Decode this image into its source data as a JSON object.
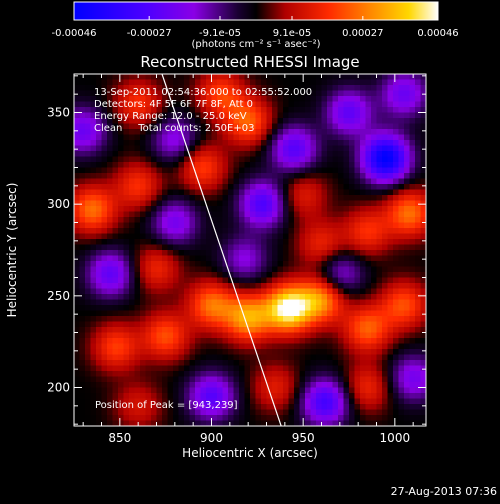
{
  "colorbar": {
    "tick_labels": [
      "-0.00046",
      "-0.00027",
      "-9.1e-05",
      "9.1e-05",
      "0.00027",
      "0.00046"
    ],
    "tick_values": [
      -0.00046,
      -0.00027,
      -9.1e-05,
      9.1e-05,
      0.00027,
      0.00046
    ],
    "range": [
      -0.00046,
      0.00046
    ],
    "unit_label": "(photons cm⁻² s⁻¹ asec⁻²)",
    "colors": [
      "#0000ff",
      "#7a00ff",
      "#000000",
      "#ff0000",
      "#ff8c00",
      "#ffffff"
    ]
  },
  "chart_data": {
    "type": "heatmap",
    "title": "Reconstructed RHESSI Image",
    "xlabel": "Heliocentric X (arcsec)",
    "ylabel": "Heliocentric Y (arcsec)",
    "xlim": [
      825,
      1017
    ],
    "ylim": [
      179,
      371
    ],
    "x_ticks": [
      850,
      900,
      950,
      1000
    ],
    "y_ticks": [
      200,
      250,
      300,
      350
    ],
    "annotations": [
      "13-Sep-2011 02:54:36.000 to 02:55:52.000",
      "Detectors: 4F 5F 6F 7F 8F, Att 0",
      "Energy Range: 12.0 - 25.0 keV",
      "Clean     Total counts: 2.50E+03"
    ],
    "peak_label": "Position of Peak = [943,239]",
    "peak": [
      943,
      239
    ],
    "limb_line": [
      [
        873,
        371
      ],
      [
        938,
        179
      ]
    ],
    "value_range": [
      -0.00046,
      0.00046
    ],
    "sources": [
      {
        "x": 942,
        "y": 243,
        "w": 0.00046
      },
      {
        "x": 920,
        "y": 238,
        "w": 0.00032
      },
      {
        "x": 960,
        "y": 248,
        "w": 0.0003
      },
      {
        "x": 985,
        "y": 232,
        "w": 0.00024
      },
      {
        "x": 900,
        "y": 245,
        "w": 0.00026
      },
      {
        "x": 875,
        "y": 228,
        "w": 0.00022
      },
      {
        "x": 848,
        "y": 222,
        "w": 0.0002
      },
      {
        "x": 1005,
        "y": 245,
        "w": 0.00022
      },
      {
        "x": 1008,
        "y": 295,
        "w": 0.00026
      },
      {
        "x": 985,
        "y": 285,
        "w": 0.00018
      },
      {
        "x": 960,
        "y": 278,
        "w": 0.00016
      },
      {
        "x": 835,
        "y": 297,
        "w": 0.00026
      },
      {
        "x": 860,
        "y": 310,
        "w": 0.00018
      },
      {
        "x": 895,
        "y": 320,
        "w": 0.0002
      },
      {
        "x": 920,
        "y": 345,
        "w": 0.00024
      },
      {
        "x": 905,
        "y": 360,
        "w": 0.0002
      },
      {
        "x": 860,
        "y": 355,
        "w": 0.00018
      },
      {
        "x": 950,
        "y": 305,
        "w": 0.00014
      },
      {
        "x": 870,
        "y": 265,
        "w": 0.00016
      },
      {
        "x": 935,
        "y": 200,
        "w": 0.00014
      },
      {
        "x": 985,
        "y": 200,
        "w": 0.00016
      },
      {
        "x": 860,
        "y": 190,
        "w": 0.00012
      },
      {
        "x": 995,
        "y": 325,
        "w": -0.00046
      },
      {
        "x": 975,
        "y": 350,
        "w": -0.00024
      },
      {
        "x": 1005,
        "y": 360,
        "w": -0.00022
      },
      {
        "x": 945,
        "y": 330,
        "w": -0.00026
      },
      {
        "x": 928,
        "y": 300,
        "w": -0.00028
      },
      {
        "x": 962,
        "y": 192,
        "w": -0.0003
      },
      {
        "x": 900,
        "y": 195,
        "w": -0.00026
      },
      {
        "x": 845,
        "y": 262,
        "w": -0.00024
      },
      {
        "x": 830,
        "y": 340,
        "w": -0.00022
      },
      {
        "x": 880,
        "y": 290,
        "w": -0.0002
      },
      {
        "x": 970,
        "y": 262,
        "w": -0.00018
      },
      {
        "x": 918,
        "y": 270,
        "w": -0.00016
      },
      {
        "x": 1010,
        "y": 205,
        "w": -0.0002
      },
      {
        "x": 880,
        "y": 335,
        "w": -0.00018
      }
    ]
  },
  "footer": {
    "timestamp": "27-Aug-2013 07:36"
  }
}
